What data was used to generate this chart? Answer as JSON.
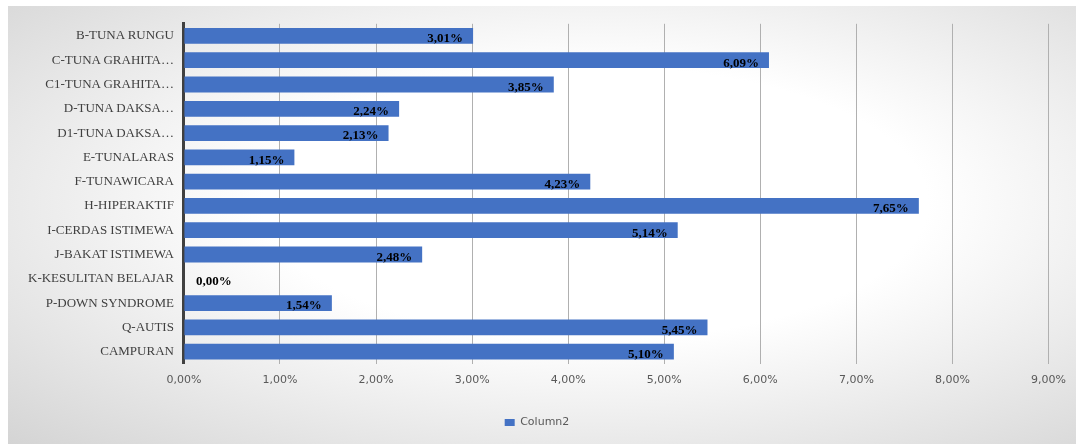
{
  "chart_data": {
    "type": "bar",
    "orientation": "horizontal",
    "categories": [
      "B-TUNA RUNGU",
      "C-TUNA GRAHITA…",
      "C1-TUNA GRAHITA…",
      "D-TUNA DAKSA…",
      "D1-TUNA DAKSA…",
      "E-TUNALARAS",
      "F-TUNAWICARA",
      "H-HIPERAKTIF",
      "I-CERDAS ISTIMEWA",
      "J-BAKAT ISTIMEWA",
      "K-KESULITAN BELAJAR",
      "P-DOWN SYNDROME",
      "Q-AUTIS",
      "CAMPURAN"
    ],
    "series": [
      {
        "name": "Column2",
        "color": "#4472c4",
        "values": [
          3.01,
          6.09,
          3.85,
          2.24,
          2.13,
          1.15,
          4.23,
          7.65,
          5.14,
          2.48,
          0,
          1.54,
          5.45,
          5.1
        ],
        "value_labels": [
          "3,01%",
          "6,09%",
          "3,85%",
          "2,24%",
          "2,13%",
          "1,15%",
          "4,23%",
          "7,65%",
          "5,14%",
          "2,48%",
          "0,00%",
          "1,54%",
          "5,45%",
          "5,10%"
        ]
      }
    ],
    "xlim": [
      0,
      9
    ],
    "xticks": [
      {
        "value": 0,
        "label": "0,00%"
      },
      {
        "value": 1,
        "label": "1,00%"
      },
      {
        "value": 2,
        "label": "2,00%"
      },
      {
        "value": 3,
        "label": "3,00%"
      },
      {
        "value": 4,
        "label": "4,00%"
      },
      {
        "value": 5,
        "label": "5,00%"
      },
      {
        "value": 6,
        "label": "6,00%"
      },
      {
        "value": 7,
        "label": "7,00%"
      },
      {
        "value": 8,
        "label": "8,00%"
      },
      {
        "value": 9,
        "label": "9,00%"
      }
    ],
    "grid": "x",
    "legend": "bottom"
  }
}
